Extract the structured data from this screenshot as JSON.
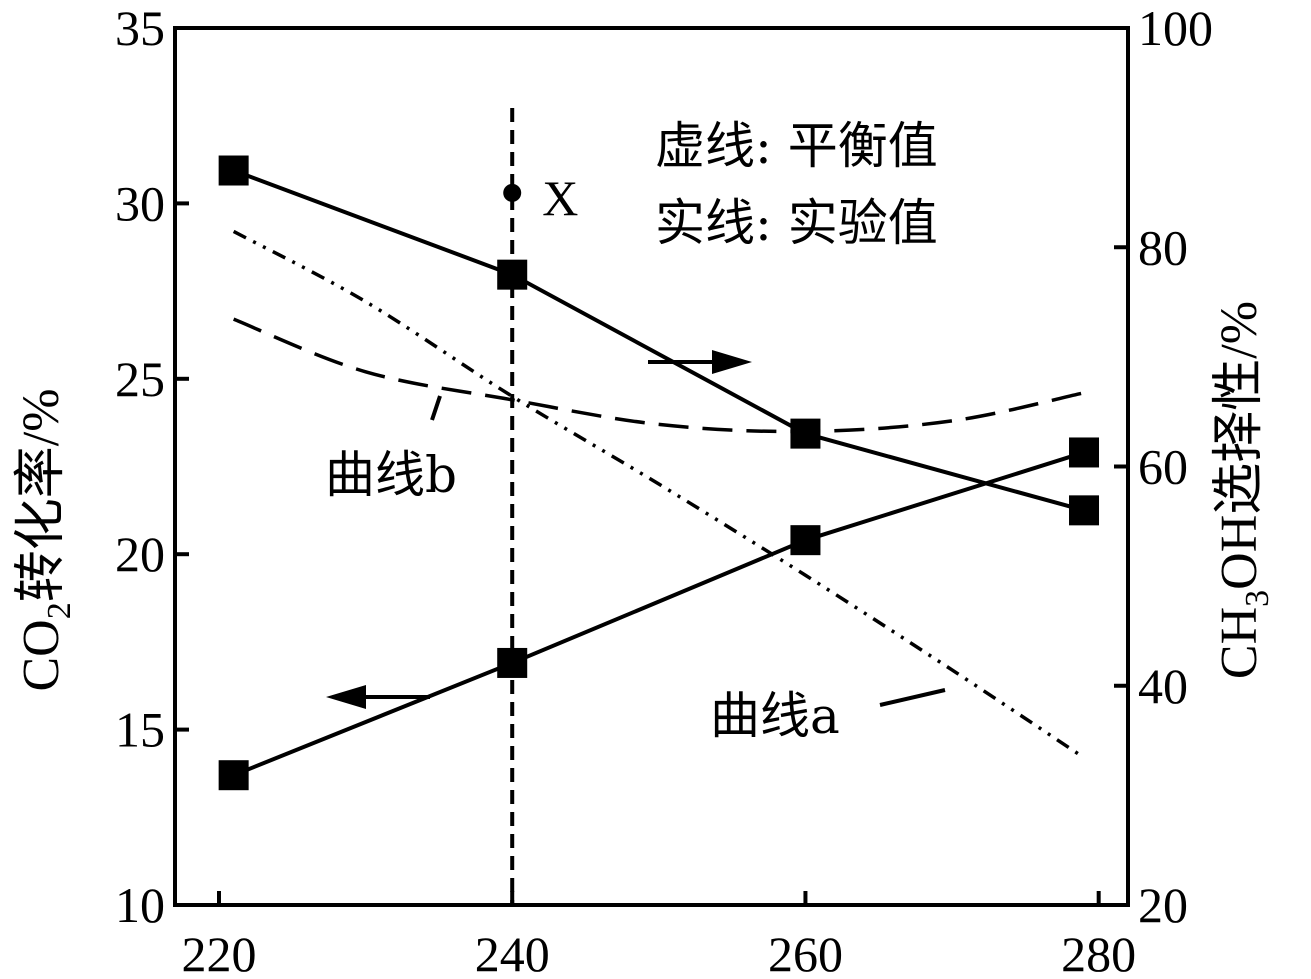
{
  "chart_data": {
    "type": "line",
    "x_ticks": [
      "220",
      "240",
      "260",
      "280"
    ],
    "xlim": [
      217,
      282
    ],
    "y_left": {
      "label_main": "CO",
      "label_sub": "2",
      "label_rest": "转化率/%",
      "ticks": [
        "10",
        "15",
        "20",
        "25",
        "30",
        "35"
      ],
      "lim": [
        10,
        35
      ]
    },
    "y_right": {
      "label_main": "CH",
      "label_sub": "3",
      "label_rest": "OH选择性/%",
      "ticks": [
        "20",
        "40",
        "60",
        "80",
        "100"
      ],
      "lim": [
        20,
        100
      ]
    },
    "series": [
      {
        "axis": "left",
        "style": "solid-square",
        "x": [
          221,
          240,
          260,
          279
        ],
        "y": [
          13.7,
          16.9,
          20.4,
          22.9
        ]
      },
      {
        "axis": "right",
        "style": "solid-square",
        "x": [
          221,
          240,
          260,
          279
        ],
        "y": [
          87.0,
          77.5,
          63.0,
          56.0
        ]
      },
      {
        "axis": "left",
        "style": "dash-dot-dot",
        "x": [
          221,
          230,
          240,
          250,
          260,
          270,
          279
        ],
        "y": [
          29.2,
          27.2,
          24.5,
          22.0,
          19.4,
          16.7,
          14.2
        ]
      },
      {
        "axis": "left",
        "style": "dashed",
        "x": [
          221,
          230,
          240,
          250,
          260,
          270,
          279
        ],
        "y": [
          26.7,
          25.2,
          24.4,
          23.7,
          23.5,
          23.8,
          24.6
        ]
      }
    ],
    "point_x": {
      "label": "X",
      "x": 240,
      "y": 30.3
    },
    "vline_x": 240,
    "annotations": {
      "legend_line1": "虚线: 平衡值",
      "legend_line2": "实线: 实验值",
      "curve_a": "曲线a",
      "curve_b": "曲线b"
    },
    "grid": false
  }
}
